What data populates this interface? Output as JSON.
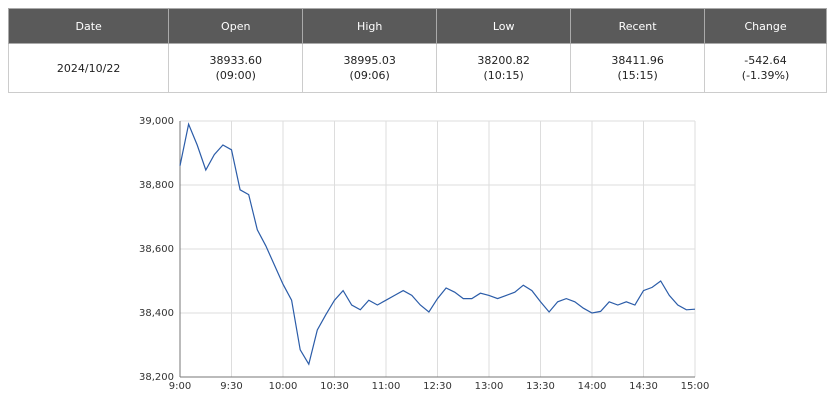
{
  "table": {
    "headers": [
      "Date",
      "Open",
      "High",
      "Low",
      "Recent",
      "Change"
    ],
    "rows": [
      [
        [
          "2024/10/22"
        ],
        [
          "38933.60",
          "(09:00)"
        ],
        [
          "38995.03",
          "(09:06)"
        ],
        [
          "38200.82",
          "(10:15)"
        ],
        [
          "38411.96",
          "(15:15)"
        ],
        [
          "-542.64",
          "(-1.39%)"
        ]
      ]
    ]
  },
  "chart_data": {
    "type": "line",
    "color": "#2b5ca8",
    "grid": true,
    "x": [
      0,
      5,
      10,
      15,
      20,
      25,
      30,
      35,
      40,
      45,
      50,
      55,
      60,
      65,
      70,
      75,
      80,
      85,
      90,
      95,
      100,
      105,
      110,
      115,
      120,
      125,
      130,
      135,
      140,
      145,
      150,
      155,
      160,
      165,
      170,
      175,
      180,
      185,
      190,
      195,
      200,
      205,
      210,
      215,
      220,
      225,
      230,
      235,
      240,
      245,
      250,
      255,
      260,
      265,
      270,
      275,
      280,
      285,
      290,
      295,
      300
    ],
    "values": [
      38860,
      38990,
      38925,
      38847,
      38895,
      38925,
      38910,
      38785,
      38770,
      38660,
      38610,
      38550,
      38490,
      38440,
      38285,
      38240,
      38347,
      38395,
      38440,
      38470,
      38425,
      38410,
      38440,
      38425,
      38440,
      38455,
      38470,
      38455,
      38425,
      38403,
      38445,
      38478,
      38465,
      38445,
      38445,
      38462,
      38455,
      38445,
      38455,
      38465,
      38487,
      38470,
      38435,
      38403,
      38435,
      38445,
      38435,
      38415,
      38400,
      38405,
      38435,
      38425,
      38435,
      38425,
      38470,
      38480,
      38500,
      38455,
      38425,
      38410,
      38412
    ],
    "xlim": [
      0,
      300
    ],
    "xticks": [
      {
        "value": 0,
        "label": "9:00"
      },
      {
        "value": 30,
        "label": "9:30"
      },
      {
        "value": 60,
        "label": "10:00"
      },
      {
        "value": 90,
        "label": "10:30"
      },
      {
        "value": 120,
        "label": "11:00"
      },
      {
        "value": 150,
        "label": "12:30"
      },
      {
        "value": 180,
        "label": "13:00"
      },
      {
        "value": 210,
        "label": "13:30"
      },
      {
        "value": 240,
        "label": "14:00"
      },
      {
        "value": 270,
        "label": "14:30"
      },
      {
        "value": 300,
        "label": "15:00"
      }
    ],
    "ylim": [
      38200,
      39000
    ],
    "yticks": [
      {
        "value": 38200,
        "label": "38,200"
      },
      {
        "value": 38400,
        "label": "38,400"
      },
      {
        "value": 38600,
        "label": "38,600"
      },
      {
        "value": 38800,
        "label": "38,800"
      },
      {
        "value": 39000,
        "label": "39,000"
      }
    ]
  }
}
